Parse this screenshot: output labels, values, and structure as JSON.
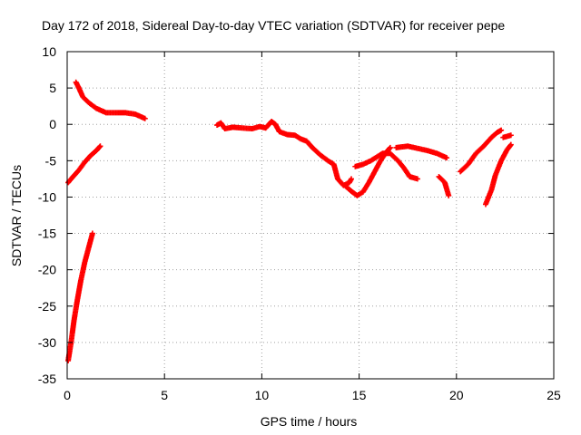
{
  "chart_data": {
    "type": "scatter",
    "title": "Day 172 of 2018, Sidereal Day-to-day VTEC variation (SDTVAR) for receiver pepe",
    "xlabel": "GPS time / hours",
    "ylabel": "SDTVAR / TECUs",
    "xlim": [
      0,
      25
    ],
    "ylim": [
      -35,
      10
    ],
    "xticks": [
      0,
      5,
      10,
      15,
      20,
      25
    ],
    "yticks": [
      -35,
      -30,
      -25,
      -20,
      -15,
      -10,
      -5,
      0,
      5,
      10
    ],
    "grid": true,
    "legend": "none",
    "series": [
      {
        "name": "SDTVAR",
        "color": "#ff0000",
        "marker": "+",
        "segments": [
          [
            [
              0.05,
              -8.0
            ],
            [
              0.3,
              -7.2
            ],
            [
              0.6,
              -6.3
            ],
            [
              0.9,
              -5.2
            ],
            [
              1.2,
              -4.3
            ],
            [
              1.5,
              -3.6
            ],
            [
              1.7,
              -3.0
            ]
          ],
          [
            [
              0.05,
              -32.5
            ],
            [
              0.2,
              -30.0
            ],
            [
              0.35,
              -27.0
            ],
            [
              0.5,
              -24.5
            ],
            [
              0.7,
              -21.5
            ],
            [
              0.9,
              -19.0
            ],
            [
              1.1,
              -17.0
            ],
            [
              1.3,
              -15.0
            ]
          ],
          [
            [
              0.45,
              5.8
            ],
            [
              0.6,
              5.0
            ],
            [
              0.8,
              3.8
            ],
            [
              1.1,
              3.0
            ],
            [
              1.5,
              2.2
            ],
            [
              2.0,
              1.6
            ],
            [
              2.5,
              1.6
            ],
            [
              3.0,
              1.6
            ],
            [
              3.5,
              1.4
            ],
            [
              4.0,
              0.8
            ]
          ],
          [
            [
              7.7,
              -0.1
            ],
            [
              7.9,
              0.2
            ],
            [
              8.1,
              -0.6
            ],
            [
              8.5,
              -0.4
            ],
            [
              9.0,
              -0.5
            ],
            [
              9.5,
              -0.6
            ],
            [
              9.9,
              -0.3
            ],
            [
              10.2,
              -0.5
            ],
            [
              10.5,
              0.4
            ],
            [
              10.7,
              0.0
            ],
            [
              10.9,
              -1.0
            ],
            [
              11.3,
              -1.4
            ],
            [
              11.7,
              -1.5
            ],
            [
              12.0,
              -2.0
            ],
            [
              12.3,
              -2.3
            ],
            [
              12.6,
              -3.2
            ],
            [
              13.0,
              -4.2
            ],
            [
              13.4,
              -5.0
            ],
            [
              13.7,
              -5.5
            ],
            [
              13.9,
              -7.5
            ],
            [
              14.2,
              -8.4
            ],
            [
              14.5,
              -8.0
            ],
            [
              14.6,
              -7.5
            ]
          ],
          [
            [
              14.3,
              -8.5
            ],
            [
              14.6,
              -9.2
            ],
            [
              14.9,
              -9.8
            ],
            [
              15.2,
              -9.3
            ],
            [
              15.5,
              -8.0
            ],
            [
              15.8,
              -6.5
            ],
            [
              16.1,
              -5.0
            ],
            [
              16.4,
              -3.8
            ],
            [
              16.6,
              -3.2
            ]
          ],
          [
            [
              14.8,
              -5.8
            ],
            [
              15.2,
              -5.5
            ],
            [
              15.6,
              -5.0
            ],
            [
              15.9,
              -4.5
            ],
            [
              16.2,
              -4.0
            ],
            [
              16.6,
              -4.0
            ],
            [
              17.0,
              -5.0
            ],
            [
              17.3,
              -6.0
            ],
            [
              17.6,
              -7.2
            ],
            [
              18.0,
              -7.5
            ]
          ],
          [
            [
              16.9,
              -3.2
            ],
            [
              17.5,
              -3.0
            ],
            [
              18.0,
              -3.3
            ],
            [
              18.5,
              -3.6
            ],
            [
              19.0,
              -4.0
            ],
            [
              19.5,
              -4.6
            ]
          ],
          [
            [
              19.1,
              -7.2
            ],
            [
              19.4,
              -8.0
            ],
            [
              19.6,
              -9.8
            ]
          ],
          [
            [
              20.2,
              -6.5
            ],
            [
              20.6,
              -5.5
            ],
            [
              21.0,
              -4.0
            ],
            [
              21.4,
              -3.0
            ],
            [
              21.8,
              -1.8
            ],
            [
              22.1,
              -1.1
            ],
            [
              22.3,
              -0.8
            ]
          ],
          [
            [
              21.5,
              -11.0
            ],
            [
              21.8,
              -9.0
            ],
            [
              22.0,
              -7.0
            ],
            [
              22.3,
              -5.0
            ],
            [
              22.6,
              -3.5
            ],
            [
              22.8,
              -2.8
            ]
          ],
          [
            [
              22.4,
              -1.8
            ],
            [
              22.8,
              -1.5
            ]
          ]
        ]
      }
    ]
  }
}
